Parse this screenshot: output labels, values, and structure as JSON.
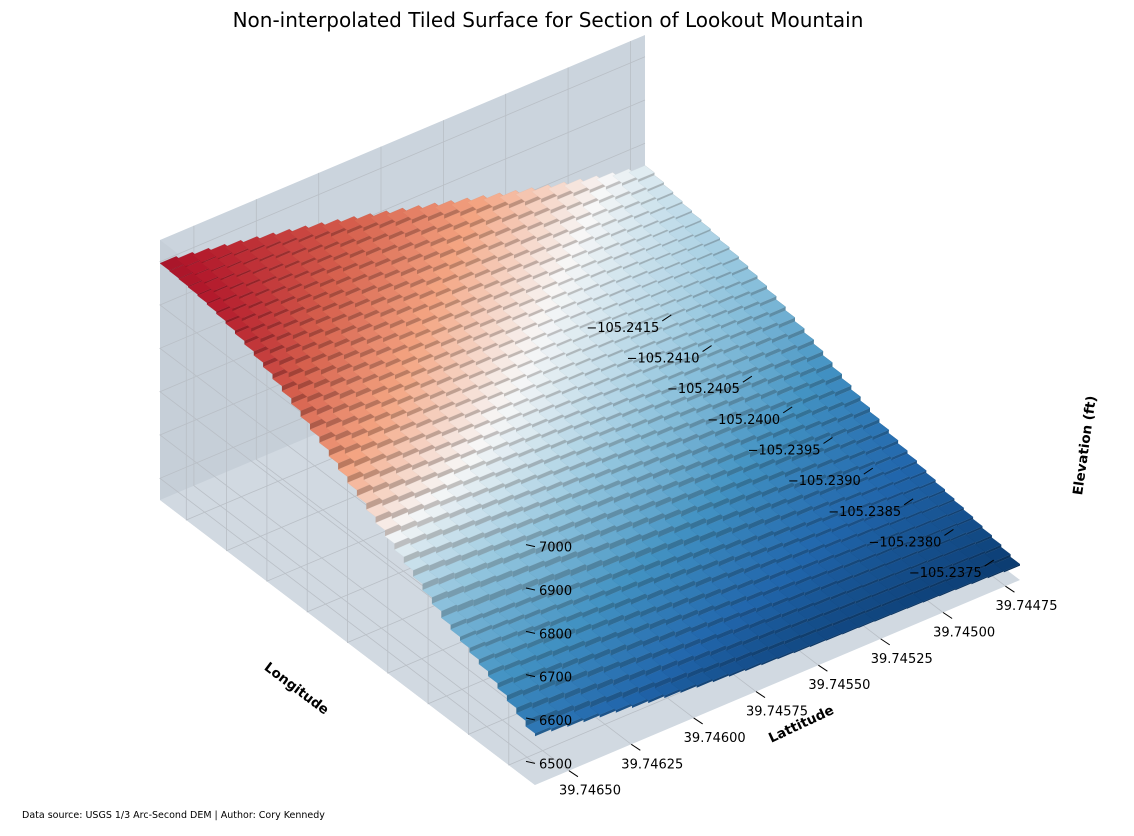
{
  "chart_data": {
    "type": "surface3d",
    "title": "Non-interpolated Tiled Surface for Section of Lookout Mountain",
    "xlabel": "Longitude",
    "ylabel": "Lattitude",
    "zlabel": "Elevation (ft)",
    "x_ticks": [
      "−105.2415",
      "−105.2410",
      "−105.2405",
      "−105.2400",
      "−105.2395",
      "−105.2390",
      "−105.2385",
      "−105.2380",
      "−105.2375"
    ],
    "y_ticks": [
      "39.74475",
      "39.74500",
      "39.74525",
      "39.74550",
      "39.74575",
      "39.74600",
      "39.74625",
      "39.74650"
    ],
    "z_ticks": [
      "6500",
      "6600",
      "6700",
      "6800",
      "6900",
      "7000"
    ],
    "xlim": [
      -105.2417,
      -105.2374
    ],
    "ylim": [
      39.7446,
      39.7465
    ],
    "zlim": [
      6450,
      7050
    ],
    "colormap": "RdBu_r",
    "corner_elevations": {
      "lon_min_lat_max": 6760,
      "lon_min_lat_min": 7000,
      "lon_max_lat_min": 6560,
      "lon_max_lat_max": 6470
    },
    "grid": true
  },
  "credit": "Data source: USGS 1/3 Arc-Second DEM | Author: Cory Kennedy",
  "colors": {
    "pane_back": "#cbd4dd",
    "pane_side": "#c6cfd8",
    "pane_floor": "#d1d9e1",
    "high": "#67001f",
    "mid": "#f7f7f7",
    "low": "#053061"
  }
}
